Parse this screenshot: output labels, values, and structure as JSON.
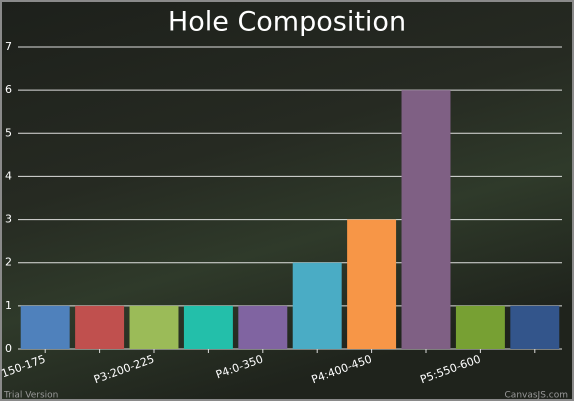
{
  "chart_data": {
    "type": "bar",
    "title": "Hole Composition",
    "categories": [
      "150-175",
      null,
      "P3:200-225",
      null,
      "P4:0-350",
      null,
      "P4:400-450",
      null,
      "P5:550-600",
      null
    ],
    "values": [
      1,
      1,
      1,
      1,
      1,
      2,
      3,
      6,
      1,
      1
    ],
    "colors": [
      "#4f81bc",
      "#c0504e",
      "#9bbb58",
      "#23bfaa",
      "#8064a1",
      "#4aacc5",
      "#f79647",
      "#7f6084",
      "#77a033",
      "#33558b"
    ],
    "ylim": [
      0,
      7
    ],
    "yticks": [
      0,
      1,
      2,
      3,
      4,
      5,
      6,
      7
    ],
    "grid": true,
    "credits": [
      "Trial Version",
      "CanvasJS.com"
    ]
  }
}
